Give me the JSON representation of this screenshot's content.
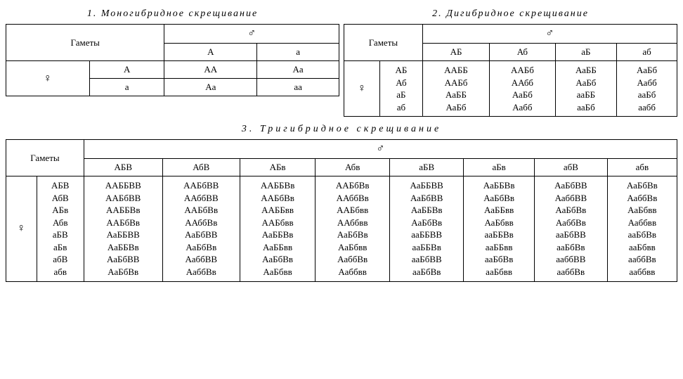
{
  "structure_type": "table",
  "background_color": "#ffffff",
  "text_color": "#000000",
  "font_family": "Times New Roman, serif",
  "title_fontsize_pt": 11,
  "body_fontsize_pt": 10,
  "titles": {
    "t1": "1.  Моногибридное  скрещивание",
    "t2": "2.  Дигибридное  скрещивание",
    "t3": "3.  Тригибридное  скрещивание"
  },
  "labels": {
    "gametes": "Гаметы",
    "female": "♀",
    "male": "♂"
  },
  "mono": {
    "male_gametes": [
      "A",
      "a"
    ],
    "female_gametes": [
      "A",
      "a"
    ],
    "grid": [
      [
        "AA",
        "Aa"
      ],
      [
        "Aa",
        "aa"
      ]
    ]
  },
  "di": {
    "male_gametes": [
      "АБ",
      "Аб",
      "аБ",
      "аб"
    ],
    "female_gametes": [
      "АБ",
      "Аб",
      "аБ",
      "аб"
    ],
    "grid": [
      [
        "ААББ",
        "ААБб",
        "АаББ",
        "АаБб"
      ],
      [
        "ААБб",
        "ААбб",
        "АаБб",
        "Аабб"
      ],
      [
        "АаББ",
        "АаБб",
        "ааББ",
        "ааБб"
      ],
      [
        "АаБб",
        "Аабб",
        "ааБб",
        "аабб"
      ]
    ]
  },
  "tri": {
    "male_gametes": [
      "АБВ",
      "АбВ",
      "АБв",
      "Абв",
      "аБВ",
      "аБв",
      "абВ",
      "абв"
    ],
    "female_gametes": [
      "АБВ",
      "АбВ",
      "АБв",
      "Абв",
      "аБВ",
      "аБв",
      "абВ",
      "абв"
    ],
    "grid": [
      [
        "ААББВВ",
        "ААБбВВ",
        "ААББВв",
        "ААБбВв",
        "АаББВВ",
        "АаББВв",
        "АаБбВВ",
        "АаБбВв"
      ],
      [
        "ААБбВВ",
        "ААббВВ",
        "ААБбВв",
        "ААббВв",
        "АаБбВВ",
        "АаБбВв",
        "АаббВВ",
        "АаббВв"
      ],
      [
        "ААББВв",
        "ААБбВв",
        "ААББвв",
        "ААБбвв",
        "АаББВв",
        "АаББвв",
        "АаБбВв",
        "АаБбвв"
      ],
      [
        "ААБбВв",
        "ААббВв",
        "ААБбвв",
        "ААббвв",
        "АаБбВв",
        "АаБбвв",
        "АаббВв",
        "Ааббвв"
      ],
      [
        "АаББВВ",
        "АаБбВВ",
        "АаББВв",
        "АаБбВв",
        "ааББВВ",
        "ааББВв",
        "ааБбВВ",
        "ааБбВв"
      ],
      [
        "АаББВв",
        "АаБбВв",
        "АаББвв",
        "АаБбвв",
        "ааББВв",
        "ааББвв",
        "ааБбВв",
        "ааБбвв"
      ],
      [
        "АаБбВВ",
        "АаббВВ",
        "АаБбВв",
        "АаббВв",
        "ааБбВВ",
        "ааБбВв",
        "ааббВВ",
        "ааббВв"
      ],
      [
        "АаБбВв",
        "АаббВв",
        "АаБбвв",
        "Ааббвв",
        "ааБбВв",
        "ааБбвв",
        "ааббВв",
        "ааббвв"
      ]
    ]
  }
}
